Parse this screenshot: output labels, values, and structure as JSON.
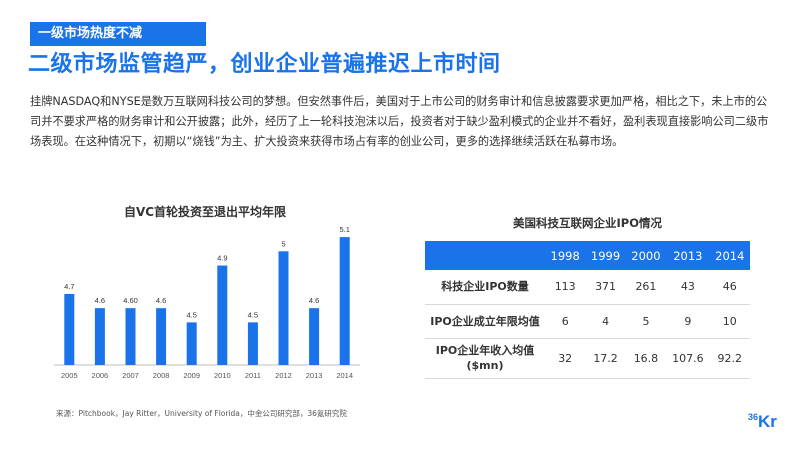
{
  "header": {
    "tag": "一级市场热度不减",
    "headline": "二级市场监管趋严，创业企业普遍推迟上市时间"
  },
  "paragraph": "挂牌NASDAQ和NYSE是数万互联网科技公司的梦想。但安然事件后，美国对于上市公司的财务审计和信息披露要求更加严格，相比之下，未上市的公司并不要求严格的财务审计和公开披露；此外，经历了上一轮科技泡沫以后，投资者对于缺少盈利模式的企业并不看好，盈利表现直接影响公司二级市场表现。在这种情况下，初期以“烧钱”为主、扩大投资来获得市场占有率的创业公司，更多的选择继续活跃在私募市场。",
  "chart_data": [
    {
      "type": "bar",
      "title": "自VC首轮投资至退出平均年限",
      "categories": [
        "2005",
        "2006",
        "2007",
        "2008",
        "2009",
        "2010",
        "2011",
        "2012",
        "2013",
        "2014"
      ],
      "values": [
        4.7,
        4.6,
        4.6,
        4.6,
        4.5,
        4.9,
        4.5,
        5.0,
        4.6,
        5.1
      ],
      "value_labels": [
        "4.7",
        "4.6",
        "4.60",
        "4.6",
        "4.5",
        "4.9",
        "4.5",
        "5",
        "4.6",
        "5.1"
      ],
      "xlabel": "",
      "ylabel": "",
      "ylim": [
        4.2,
        5.15
      ],
      "grid": false,
      "color": "#1a73e8"
    },
    {
      "type": "table",
      "title": "美国科技互联网企业IPO情况",
      "columns": [
        "1998",
        "1999",
        "2000",
        "2013",
        "2014"
      ],
      "rows": [
        {
          "label": "科技企业IPO数量",
          "values": [
            "113",
            "371",
            "261",
            "43",
            "46"
          ]
        },
        {
          "label": "IPO企业成立年限均值",
          "values": [
            "6",
            "4",
            "5",
            "9",
            "10"
          ]
        },
        {
          "label_line1": "IPO企业年收入均值",
          "label_line2": "($mn)",
          "values": [
            "32",
            "17.2",
            "16.8",
            "107.6",
            "92.2"
          ]
        }
      ]
    }
  ],
  "source": "来源：Pitchbook，Jay Ritter，University of Florida，中金公司研究部，36氪研究院",
  "logo": {
    "number": "36",
    "letters": "Kr"
  },
  "colors": {
    "accent": "#1a73e8",
    "text": "#333333"
  }
}
